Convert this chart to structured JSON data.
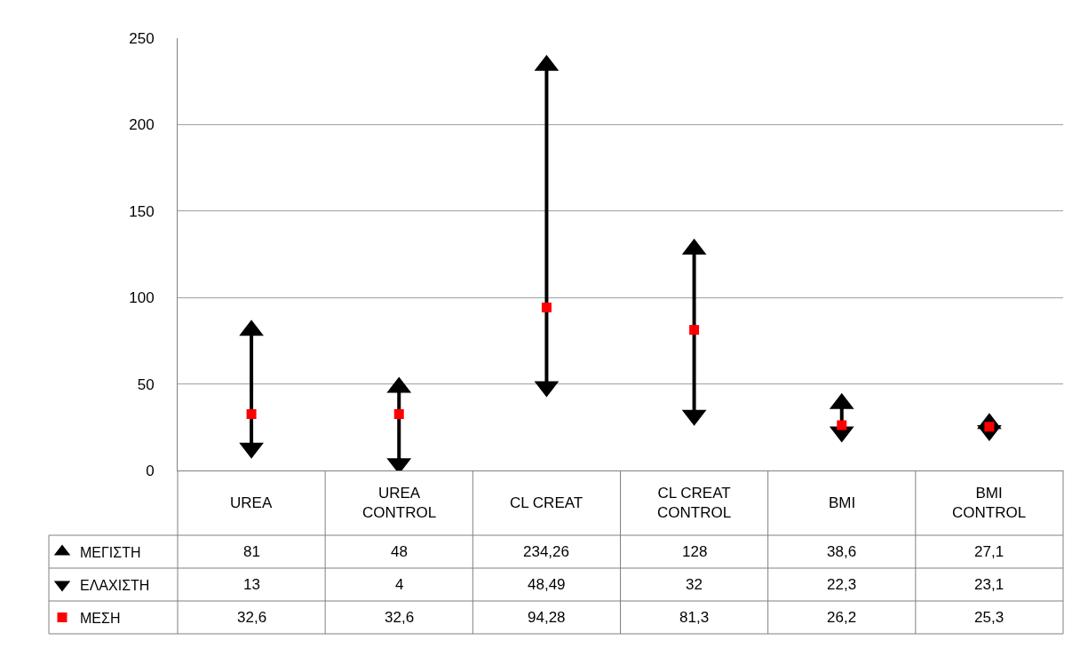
{
  "chart_data": {
    "type": "scatter",
    "categories": [
      "UREA",
      "UREA CONTROL",
      "CL CREAT",
      "CL CREAT CONTROL",
      "BMI",
      "BMI CONTROL"
    ],
    "ylim": [
      0,
      250
    ],
    "yticks": [
      0,
      50,
      100,
      150,
      200,
      250
    ],
    "grid": "y",
    "legend": "bottom left",
    "series": [
      {
        "name": "ΜΕΓΙΣΤΗ",
        "color": "#000000",
        "marker": "triangle",
        "values": [
          81,
          48,
          234.26,
          128,
          38.6,
          27.1
        ],
        "value_labels": [
          "81",
          "48",
          "234,26",
          "128",
          "38,6",
          "27,1"
        ]
      },
      {
        "name": "ΕΛΑΧΙΣΤΗ",
        "color": "#000000",
        "marker": "triangle",
        "values": [
          13,
          4,
          48.49,
          32,
          22.3,
          23.1
        ],
        "value_labels": [
          "13",
          "4",
          "48,49",
          "32",
          "22,3",
          "23,1"
        ]
      },
      {
        "name": "ΜΕΣΗ",
        "color": "#ff0000",
        "marker": "square",
        "values": [
          32.6,
          32.6,
          94.28,
          81.3,
          26.2,
          25.3
        ],
        "value_labels": [
          "32,6",
          "32,6",
          "94,28",
          "81,3",
          "26,2",
          "25,3"
        ]
      }
    ]
  }
}
